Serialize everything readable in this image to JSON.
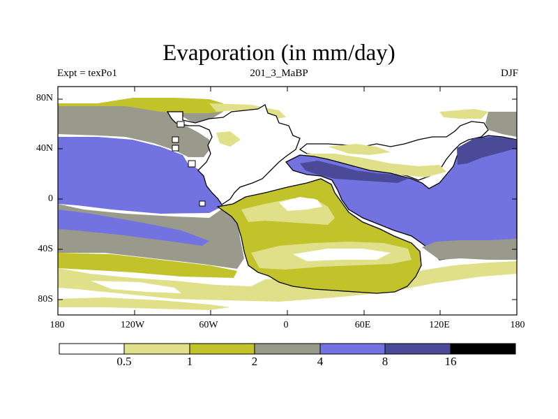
{
  "title": "Evaporation (in mm/day)",
  "left_label": "Expt = texPo1",
  "center_label": "201_3_MaBP",
  "right_label": "DJF",
  "lat_labels": [
    "80N",
    "40N",
    "0",
    "40S",
    "80S"
  ],
  "lon_labels": [
    "180",
    "120W",
    "60W",
    "0",
    "60E",
    "120E",
    "180"
  ],
  "colorbar": {
    "levels": [
      "0.5",
      "1",
      "2",
      "4",
      "8",
      "16"
    ],
    "colors": [
      "#ffffff",
      "#e0e08a",
      "#c2c22a",
      "#9a9a8c",
      "#7272e0",
      "#4a4a98",
      "#000000"
    ]
  }
}
